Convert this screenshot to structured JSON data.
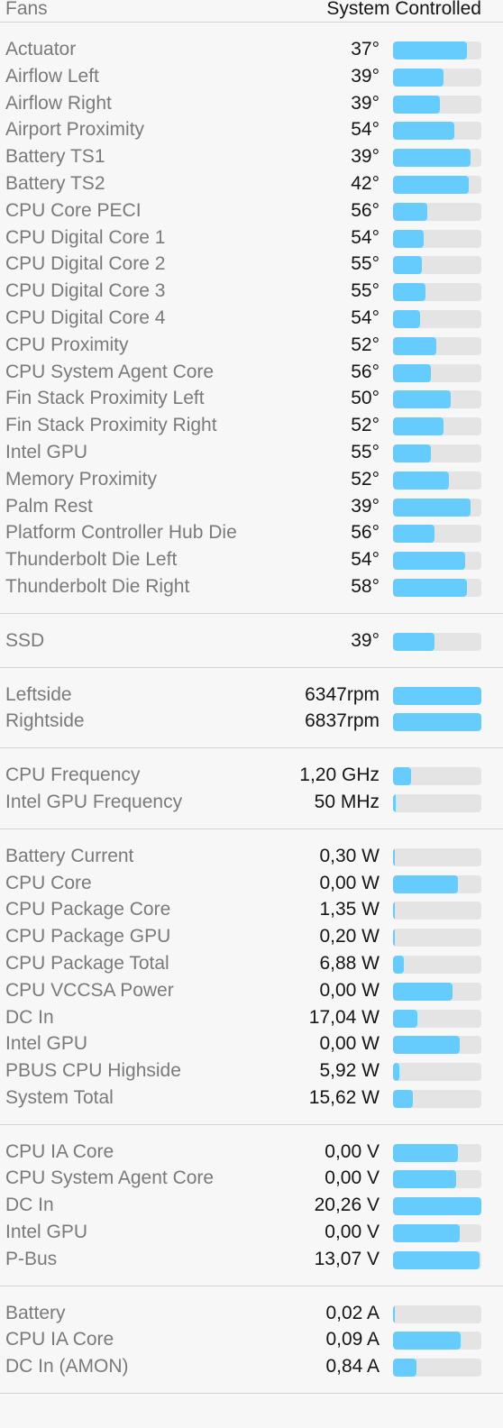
{
  "header": {
    "title": "Fans",
    "mode": "System Controlled"
  },
  "colors": {
    "bar_fill": "#66ccfd",
    "bar_track": "#e4e4e4",
    "background": "#f7f7f7"
  },
  "sections": [
    {
      "name": "temperatures",
      "rows": [
        {
          "label": "Actuator",
          "value": "37°",
          "level": 0.84
        },
        {
          "label": "Airflow Left",
          "value": "39°",
          "level": 0.57
        },
        {
          "label": "Airflow Right",
          "value": "39°",
          "level": 0.53
        },
        {
          "label": "Airport Proximity",
          "value": "54°",
          "level": 0.69
        },
        {
          "label": "Battery TS1",
          "value": "39°",
          "level": 0.88
        },
        {
          "label": "Battery TS2",
          "value": "42°",
          "level": 0.86
        },
        {
          "label": "CPU Core PECI",
          "value": "56°",
          "level": 0.39
        },
        {
          "label": "CPU Digital Core 1",
          "value": "54°",
          "level": 0.35
        },
        {
          "label": "CPU Digital Core 2",
          "value": "55°",
          "level": 0.33
        },
        {
          "label": "CPU Digital Core 3",
          "value": "55°",
          "level": 0.37
        },
        {
          "label": "CPU Digital Core 4",
          "value": "54°",
          "level": 0.31
        },
        {
          "label": "CPU Proximity",
          "value": "52°",
          "level": 0.49
        },
        {
          "label": "CPU System Agent Core",
          "value": "56°",
          "level": 0.43
        },
        {
          "label": "Fin Stack Proximity Left",
          "value": "50°",
          "level": 0.65
        },
        {
          "label": "Fin Stack Proximity Right",
          "value": "52°",
          "level": 0.57
        },
        {
          "label": "Intel GPU",
          "value": "55°",
          "level": 0.43
        },
        {
          "label": "Memory Proximity",
          "value": "52°",
          "level": 0.63
        },
        {
          "label": "Palm Rest",
          "value": "39°",
          "level": 0.88
        },
        {
          "label": "Platform Controller Hub Die",
          "value": "56°",
          "level": 0.47
        },
        {
          "label": "Thunderbolt Die Left",
          "value": "54°",
          "level": 0.82
        },
        {
          "label": "Thunderbolt Die Right",
          "value": "58°",
          "level": 0.84
        }
      ]
    },
    {
      "name": "storage",
      "rows": [
        {
          "label": "SSD",
          "value": "39°",
          "level": 0.47
        }
      ]
    },
    {
      "name": "fans",
      "rows": [
        {
          "label": "Leftside",
          "value": "6347rpm",
          "level": 1.0
        },
        {
          "label": "Rightside",
          "value": "6837rpm",
          "level": 1.0
        }
      ]
    },
    {
      "name": "frequencies",
      "rows": [
        {
          "label": "CPU Frequency",
          "value": "1,20 GHz",
          "level": 0.2
        },
        {
          "label": "Intel GPU Frequency",
          "value": "50 MHz",
          "level": 0.03
        }
      ]
    },
    {
      "name": "power",
      "rows": [
        {
          "label": "Battery Current",
          "value": "0,30 W",
          "level": 0.02
        },
        {
          "label": "CPU Core",
          "value": "0,00 W",
          "level": 0.73
        },
        {
          "label": "CPU Package Core",
          "value": "1,35 W",
          "level": 0.02
        },
        {
          "label": "CPU Package GPU",
          "value": "0,20 W",
          "level": 0.02
        },
        {
          "label": "CPU Package Total",
          "value": "6,88 W",
          "level": 0.12
        },
        {
          "label": "CPU VCCSA Power",
          "value": "0,00 W",
          "level": 0.67
        },
        {
          "label": "DC In",
          "value": "17,04 W",
          "level": 0.28
        },
        {
          "label": "Intel GPU",
          "value": "0,00 W",
          "level": 0.75
        },
        {
          "label": "PBUS CPU Highside",
          "value": "5,92 W",
          "level": 0.07
        },
        {
          "label": "System Total",
          "value": "15,62 W",
          "level": 0.22
        }
      ]
    },
    {
      "name": "voltages",
      "rows": [
        {
          "label": "CPU IA Core",
          "value": "0,00 V",
          "level": 0.73
        },
        {
          "label": "CPU System Agent Core",
          "value": "0,00 V",
          "level": 0.71
        },
        {
          "label": "DC In",
          "value": "20,26 V",
          "level": 1.0
        },
        {
          "label": "Intel GPU",
          "value": "0,00 V",
          "level": 0.75
        },
        {
          "label": "P-Bus",
          "value": "13,07 V",
          "level": 0.98
        }
      ]
    },
    {
      "name": "currents",
      "rows": [
        {
          "label": "Battery",
          "value": "0,02 A",
          "level": 0.02
        },
        {
          "label": "CPU IA Core",
          "value": "0,09 A",
          "level": 0.77
        },
        {
          "label": "DC In (AMON)",
          "value": "0,84 A",
          "level": 0.27
        }
      ]
    }
  ]
}
